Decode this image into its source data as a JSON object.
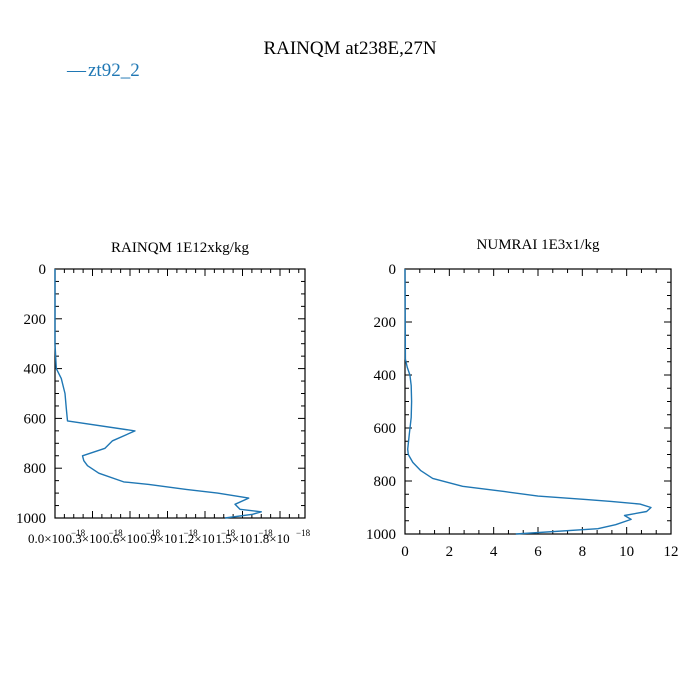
{
  "title": "RAINQM at238E,27N",
  "legend": {
    "label": "zt92_2",
    "color": "#1f77b4",
    "symbol": "—"
  },
  "chart_data": [
    {
      "type": "line",
      "title": "RAINQM  1E12xkg/kg",
      "xlabel": "",
      "ylabel": "",
      "xlim": [
        0,
        2e-18
      ],
      "ylim": [
        1000,
        0
      ],
      "x_ticks": [
        "0.0×10",
        "0.3×10",
        "0.6×10",
        "0.9×10",
        "1.2×10",
        "1.5×10",
        "1.8×10"
      ],
      "x_tick_exp": "−18",
      "y_ticks": [
        "0",
        "200",
        "400",
        "600",
        "800",
        "1000"
      ],
      "series": [
        {
          "name": "zt92_2",
          "color": "#1f77b4",
          "x": [
            0,
            0,
            1e-20,
            5e-20,
            8e-20,
            9e-20,
            1e-19,
            6.4e-19,
            4.6e-19,
            4e-19,
            2.2e-19,
            2.3e-19,
            2.6e-19,
            3.5e-19,
            5.5e-19,
            7.5e-19,
            1.05e-18,
            1.3e-18,
            1.55e-18,
            1.44e-18,
            1.48e-18,
            1.65e-18,
            1.58e-18,
            1.36e-18
          ],
          "y": [
            0,
            300,
            400,
            440,
            500,
            560,
            610,
            650,
            690,
            720,
            750,
            770,
            790,
            820,
            855,
            865,
            885,
            900,
            920,
            945,
            965,
            975,
            985,
            1000
          ]
        }
      ]
    },
    {
      "type": "line",
      "title": "NUMRAI  1E3x1/kg",
      "xlabel": "",
      "ylabel": "",
      "xlim": [
        0,
        12
      ],
      "ylim": [
        1000,
        0
      ],
      "x_ticks": [
        "0",
        "2",
        "4",
        "6",
        "8",
        "10",
        "12"
      ],
      "y_ticks": [
        "0",
        "200",
        "400",
        "600",
        "800",
        "1000"
      ],
      "series": [
        {
          "name": "zt92_2",
          "color": "#1f77b4",
          "x": [
            0,
            0.02,
            0.1,
            0.22,
            0.28,
            0.3,
            0.28,
            0.2,
            0.12,
            0.15,
            0.35,
            0.7,
            1.25,
            2.6,
            4.5,
            6.0,
            8.2,
            9.3,
            10.6,
            11.1,
            10.9,
            9.9,
            10.2,
            9.5,
            8.7,
            5.0
          ],
          "y": [
            0,
            340,
            370,
            400,
            440,
            500,
            560,
            620,
            680,
            700,
            730,
            760,
            790,
            820,
            840,
            857,
            870,
            877,
            887,
            900,
            915,
            930,
            945,
            965,
            980,
            1000
          ]
        }
      ]
    }
  ]
}
